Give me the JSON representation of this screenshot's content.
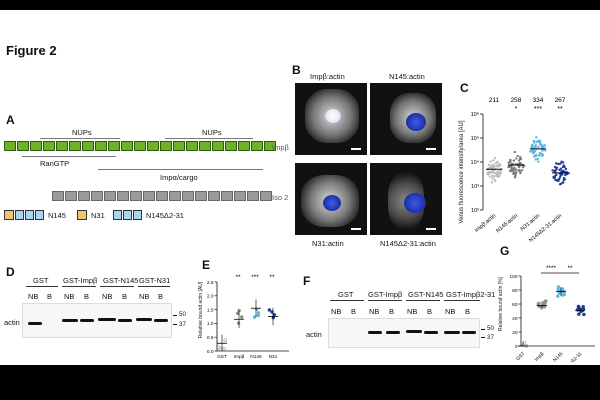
{
  "figure_title": "Figure 2",
  "panels": {
    "A": {
      "letter": "A",
      "nups_label_1": "NUPs",
      "nups_label_2": "NUPs",
      "rangtp_label": "RanGTP",
      "impa_cargo_label": "Impα/cargo",
      "row1_label": "Impβ",
      "row2_label": "Iso 2",
      "construct_labels": [
        "N145",
        "N31",
        "N145Δ2-31"
      ]
    },
    "B": {
      "letter": "B",
      "image_labels": [
        "Impβ:actin",
        "N145:actin",
        "N31:actin",
        "N145Δ2-31:actin"
      ]
    },
    "C": {
      "letter": "C",
      "ylabel": "Venus fluorescence intensity/area [AU]",
      "counts": [
        "211",
        "258",
        "334",
        "267"
      ],
      "significance": [
        "",
        "*",
        "***",
        "**"
      ],
      "chart_data": {
        "type": "scatter",
        "categories": [
          "Impβ:actin",
          "N145:actin",
          "N31:actin",
          "N145Δ2-31:actin"
        ],
        "y_scale": "log",
        "yticks": [
          "10²",
          "10³",
          "10⁴",
          "10⁵",
          "10⁶"
        ],
        "ylim": [
          100,
          1000000
        ],
        "medians": [
          5000,
          7500,
          35000,
          3500
        ],
        "colors": [
          "#bdbdbd",
          "#7a7a7a",
          "#5bb8de",
          "#1f3e9e"
        ]
      }
    },
    "D": {
      "letter": "D",
      "lane_groups": [
        "GST",
        "GST-Impβ",
        "GST-N145",
        "GST-N31"
      ],
      "lane_labels": [
        "NB",
        "B",
        "NB",
        "B",
        "NB",
        "B",
        "NB",
        "B"
      ],
      "row_label": "actin",
      "mw_markers": [
        "50",
        "37"
      ]
    },
    "E": {
      "letter": "E",
      "ylabel": "Relative bound actin [AU]",
      "significance": [
        "",
        "**",
        "***",
        "**"
      ],
      "chart_data": {
        "type": "scatter",
        "categories": [
          "GST",
          "Impβ",
          "N145",
          "N31"
        ],
        "yticks": [
          "0.0",
          "0.5",
          "1.0",
          "1.5",
          "2.0",
          "2.5"
        ],
        "ylim": [
          0,
          2.5
        ],
        "means": [
          0.28,
          1.15,
          1.55,
          1.25
        ],
        "colors": [
          "#a0a0a0",
          "#8c8c8c",
          "#5bb8de",
          "#1f3e9e"
        ]
      }
    },
    "F": {
      "letter": "F",
      "lane_groups": [
        "GST",
        "GST-Impβ",
        "GST-N145",
        "GST-Impβ2-31"
      ],
      "lane_labels": [
        "NB",
        "B",
        "NB",
        "B",
        "NB",
        "B",
        "NB",
        "B"
      ],
      "row_label": "actin",
      "mw_markers": [
        "50",
        "37"
      ]
    },
    "G": {
      "letter": "G",
      "ylabel": "Relative bound actin [%]",
      "significance": [
        "****",
        "**"
      ],
      "chart_data": {
        "type": "scatter",
        "categories": [
          "GST",
          "Impβ",
          "N145",
          "Impβ2-31"
        ],
        "yticks": [
          "0",
          "20",
          "40",
          "60",
          "80",
          "100"
        ],
        "ylim": [
          0,
          100
        ],
        "means": [
          0,
          58,
          78,
          51
        ],
        "colors": [
          "#a0a0a0",
          "#8c8c8c",
          "#5bb8de",
          "#1f3e9e"
        ]
      }
    }
  }
}
